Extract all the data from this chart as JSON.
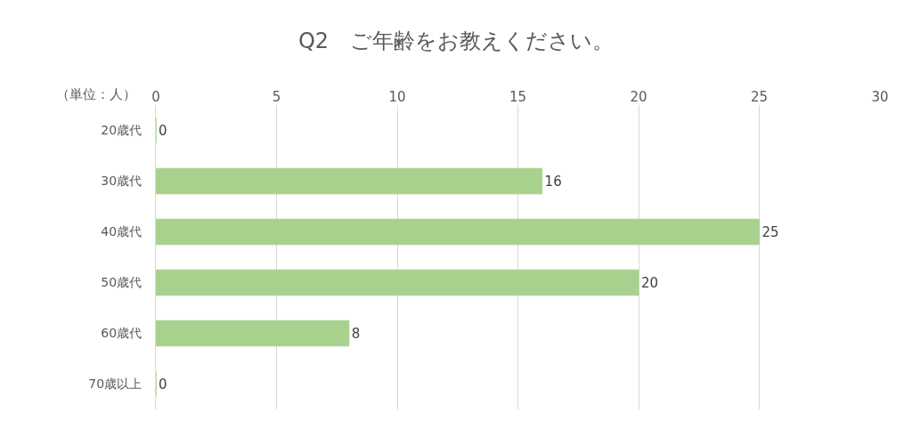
{
  "chart_data": {
    "type": "bar",
    "orientation": "horizontal",
    "title": "Q2　ご年齢をお教えください。",
    "categories": [
      "20歳代",
      "30歳代",
      "40歳代",
      "50歳代",
      "60歳代",
      "70歳以上"
    ],
    "values": [
      0,
      16,
      25,
      20,
      8,
      0
    ],
    "color": "#a9d18e",
    "xlim": [
      0,
      30
    ],
    "xticks": [
      0,
      5,
      10,
      15,
      20,
      25,
      30
    ],
    "grid": "x",
    "data_labels": true,
    "annotations": [
      "（単位：人）"
    ]
  }
}
